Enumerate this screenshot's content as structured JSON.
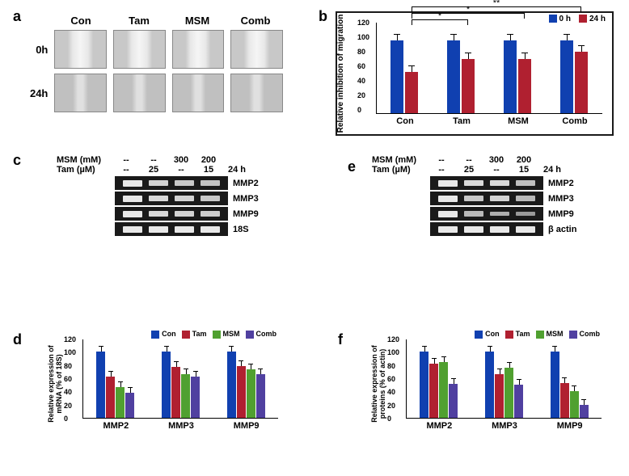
{
  "panel_a": {
    "label": "a",
    "col_headers": [
      "Con",
      "Tam",
      "MSM",
      "Comb"
    ],
    "row_headers": [
      "0h",
      "24h"
    ]
  },
  "panel_b": {
    "label": "b",
    "ylabel": "Relative inhibition of migration",
    "ylim": [
      0,
      120
    ],
    "ytick_step": 20,
    "yticks": [
      0,
      20,
      40,
      60,
      80,
      100,
      120
    ],
    "categories": [
      "Con",
      "Tam",
      "MSM",
      "Comb"
    ],
    "series": [
      {
        "name": "0 h",
        "color": "#1040b0",
        "values": [
          100,
          100,
          100,
          100
        ],
        "err": [
          5,
          5,
          5,
          5
        ]
      },
      {
        "name": "24 h",
        "color": "#b02030",
        "values": [
          57,
          75,
          75,
          85
        ],
        "err": [
          4,
          4,
          4,
          5
        ]
      }
    ],
    "significance": [
      {
        "from": 0,
        "to": 1,
        "stars": "*"
      },
      {
        "from": 0,
        "to": 2,
        "stars": "*"
      },
      {
        "from": 0,
        "to": 3,
        "stars": "**"
      }
    ]
  },
  "panel_c": {
    "label": "c",
    "msm_label": "MSM (mM)",
    "tam_label": "Tam (µM)",
    "msm_vals": [
      "--",
      "--",
      "300",
      "200"
    ],
    "tam_vals": [
      "--",
      "25",
      "--",
      "15"
    ],
    "time_label": "24 h",
    "rows": [
      "MMP2",
      "MMP3",
      "MMP9",
      "18S"
    ],
    "band_intensity": [
      [
        1.0,
        0.8,
        0.7,
        0.65
      ],
      [
        1.0,
        0.85,
        0.8,
        0.7
      ],
      [
        1.0,
        0.85,
        0.8,
        0.75
      ],
      [
        1.0,
        1.0,
        1.0,
        1.0
      ]
    ]
  },
  "panel_e": {
    "label": "e",
    "msm_label": "MSM (mM)",
    "tam_label": "Tam (µM)",
    "msm_vals": [
      "--",
      "--",
      "300",
      "200"
    ],
    "tam_vals": [
      "--",
      "25",
      "--",
      "15"
    ],
    "time_label": "24 h",
    "rows": [
      "MMP2",
      "MMP3",
      "MMP9",
      "β actin"
    ],
    "band_intensity": [
      [
        1.0,
        0.85,
        0.85,
        0.6
      ],
      [
        1.0,
        0.7,
        0.8,
        0.55
      ],
      [
        1.0,
        0.55,
        0.45,
        0.25
      ],
      [
        1.0,
        1.0,
        1.0,
        1.0
      ]
    ]
  },
  "panel_d": {
    "label": "d",
    "ylabel": "Relative expression of\nmRNA (% of 18S)",
    "ylim": [
      0,
      120
    ],
    "yticks": [
      0,
      20,
      40,
      60,
      80,
      100,
      120
    ],
    "categories": [
      "MMP2",
      "MMP3",
      "MMP9"
    ],
    "series": [
      {
        "name": "Con",
        "color": "#1040b0",
        "values": [
          100,
          100,
          100
        ],
        "err": [
          5,
          5,
          5
        ]
      },
      {
        "name": "Tam",
        "color": "#b02030",
        "values": [
          62,
          77,
          78
        ],
        "err": [
          4,
          5,
          5
        ]
      },
      {
        "name": "MSM",
        "color": "#50a030",
        "values": [
          46,
          66,
          74
        ],
        "err": [
          3,
          4,
          5
        ]
      },
      {
        "name": "Comb",
        "color": "#5040a0",
        "values": [
          38,
          62,
          66
        ],
        "err": [
          3,
          4,
          4
        ]
      }
    ]
  },
  "panel_f": {
    "label": "f",
    "ylabel": "Relative expression of\nproteins (% of actin)",
    "ylim": [
      0,
      120
    ],
    "yticks": [
      0,
      20,
      40,
      60,
      80,
      100,
      120
    ],
    "categories": [
      "MMP2",
      "MMP3",
      "MMP9"
    ],
    "series": [
      {
        "name": "Con",
        "color": "#1040b0",
        "values": [
          100,
          100,
          100
        ],
        "err": [
          5,
          5,
          5
        ]
      },
      {
        "name": "Tam",
        "color": "#b02030",
        "values": [
          82,
          66,
          53
        ],
        "err": [
          4,
          4,
          5
        ]
      },
      {
        "name": "MSM",
        "color": "#50a030",
        "values": [
          84,
          76,
          40
        ],
        "err": [
          4,
          5,
          4
        ]
      },
      {
        "name": "Comb",
        "color": "#5040a0",
        "values": [
          52,
          50,
          20
        ],
        "err": [
          3,
          4,
          3
        ]
      }
    ]
  }
}
